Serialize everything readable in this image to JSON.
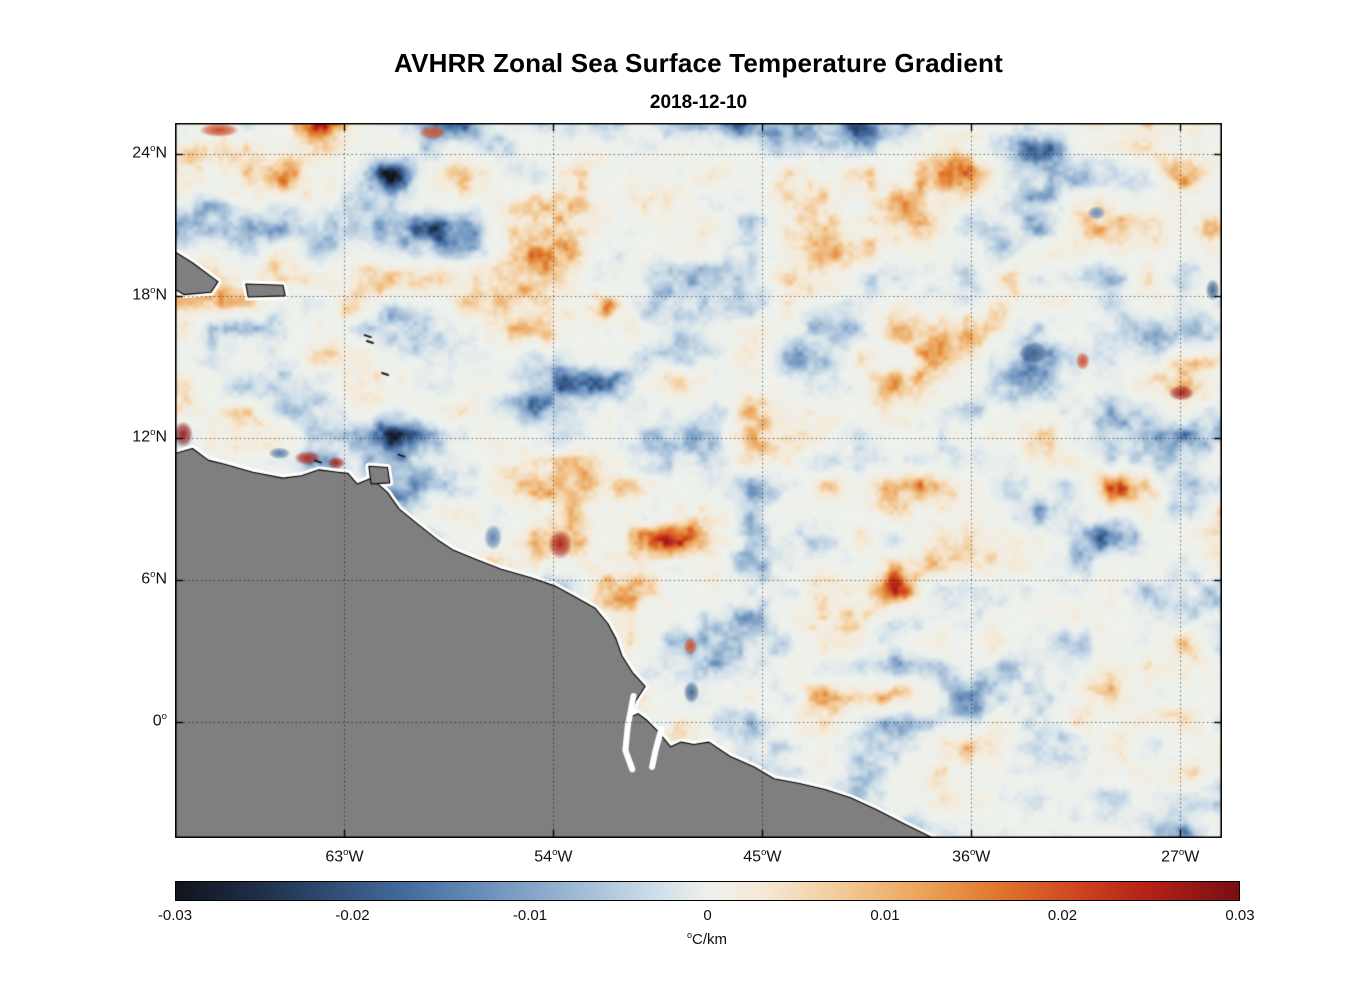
{
  "figure": {
    "title": "AVHRR Zonal Sea Surface Temperature Gradient",
    "subtitle": "2018-12-10"
  },
  "chart_data": {
    "type": "heatmap",
    "title": "AVHRR Zonal Sea Surface Temperature Gradient",
    "date": "2018-12-10",
    "variable": "Zonal sea surface temperature gradient",
    "units": "°C/km",
    "lon_range": [
      -70.3,
      -25.2
    ],
    "lat_range": [
      -4.9,
      25.3
    ],
    "grid": true,
    "grid_style": "dotted",
    "x_ticks": [
      {
        "lon": -63,
        "num": "63",
        "sup": "o",
        "hemi": "W"
      },
      {
        "lon": -54,
        "num": "54",
        "sup": "o",
        "hemi": "W"
      },
      {
        "lon": -45,
        "num": "45",
        "sup": "o",
        "hemi": "W"
      },
      {
        "lon": -36,
        "num": "36",
        "sup": "o",
        "hemi": "W"
      },
      {
        "lon": -27,
        "num": "27",
        "sup": "o",
        "hemi": "W"
      }
    ],
    "y_ticks": [
      {
        "lat": 24,
        "num": "24",
        "sup": "o",
        "hemi": "N"
      },
      {
        "lat": 18,
        "num": "18",
        "sup": "o",
        "hemi": "N"
      },
      {
        "lat": 12,
        "num": "12",
        "sup": "o",
        "hemi": "N"
      },
      {
        "lat": 6,
        "num": "6",
        "sup": "o",
        "hemi": "N"
      },
      {
        "lat": 0,
        "num": "0",
        "sup": "o",
        "hemi": ""
      }
    ],
    "colorbar": {
      "orientation": "horizontal",
      "min": -0.03,
      "max": 0.03,
      "tick_values": [
        -0.03,
        -0.02,
        -0.01,
        0,
        0.01,
        0.02,
        0.03
      ],
      "tick_labels": [
        "-0.03",
        "-0.02",
        "-0.01",
        "0",
        "0.01",
        "0.02",
        "0.03"
      ],
      "unit_sup": "o",
      "unit": "C/km",
      "stops": [
        [
          0.0,
          "#10151e"
        ],
        [
          0.07,
          "#1d2b44"
        ],
        [
          0.14,
          "#2e4a70"
        ],
        [
          0.21,
          "#41689b"
        ],
        [
          0.29,
          "#6a8fbb"
        ],
        [
          0.37,
          "#9ab7d3"
        ],
        [
          0.45,
          "#cddde9"
        ],
        [
          0.5,
          "#eef1ec"
        ],
        [
          0.55,
          "#f5ead8"
        ],
        [
          0.62,
          "#f3cd9d"
        ],
        [
          0.7,
          "#eba55c"
        ],
        [
          0.77,
          "#e0792f"
        ],
        [
          0.84,
          "#d04a22"
        ],
        [
          0.91,
          "#b52318"
        ],
        [
          1.0,
          "#7a0e12"
        ]
      ]
    },
    "land_color": "#7f7f7f",
    "coast_halo_color": "#ffffff",
    "coast_line_color": "#000000",
    "noise": {
      "seed": 12345,
      "amplitude": 0.03
    },
    "land": {
      "mainland": [
        [
          -70.45,
          11.3
        ],
        [
          -69.55,
          11.55
        ],
        [
          -68.85,
          11.05
        ],
        [
          -68.2,
          10.9
        ],
        [
          -66.95,
          10.55
        ],
        [
          -65.65,
          10.3
        ],
        [
          -64.85,
          10.4
        ],
        [
          -64.1,
          10.65
        ],
        [
          -63.3,
          10.55
        ],
        [
          -62.85,
          10.5
        ],
        [
          -62.45,
          10.05
        ],
        [
          -61.85,
          10.3
        ],
        [
          -61.15,
          9.7
        ],
        [
          -60.65,
          9.0
        ],
        [
          -59.9,
          8.4
        ],
        [
          -59.0,
          7.7
        ],
        [
          -58.3,
          7.25
        ],
        [
          -57.3,
          6.85
        ],
        [
          -56.25,
          6.45
        ],
        [
          -55.0,
          6.1
        ],
        [
          -53.95,
          5.75
        ],
        [
          -53.1,
          5.3
        ],
        [
          -52.2,
          4.8
        ],
        [
          -51.65,
          4.15
        ],
        [
          -51.3,
          3.5
        ],
        [
          -51.05,
          2.8
        ],
        [
          -50.6,
          2.1
        ],
        [
          -50.05,
          1.5
        ],
        [
          -50.45,
          0.9
        ],
        [
          -50.7,
          0.2
        ],
        [
          -50.35,
          0.35
        ],
        [
          -49.95,
          0.05
        ],
        [
          -49.5,
          -0.4
        ],
        [
          -48.95,
          -1.05
        ],
        [
          -48.5,
          -0.85
        ],
        [
          -47.95,
          -0.95
        ],
        [
          -47.3,
          -0.85
        ],
        [
          -46.4,
          -1.45
        ],
        [
          -45.35,
          -1.9
        ],
        [
          -44.5,
          -2.4
        ],
        [
          -43.4,
          -2.6
        ],
        [
          -42.3,
          -2.85
        ],
        [
          -41.2,
          -3.2
        ],
        [
          -40.1,
          -3.7
        ],
        [
          -38.9,
          -4.3
        ],
        [
          -37.55,
          -4.95
        ],
        [
          -36.9,
          -5.7
        ],
        [
          -36.5,
          -7.0
        ],
        [
          -71.0,
          -7.0
        ]
      ],
      "hispaniola": [
        [
          -70.45,
          19.95
        ],
        [
          -69.55,
          19.4
        ],
        [
          -68.45,
          18.6
        ],
        [
          -68.75,
          18.15
        ],
        [
          -69.9,
          18.05
        ],
        [
          -70.45,
          18.35
        ]
      ],
      "puerto_rico": [
        [
          -67.25,
          18.5
        ],
        [
          -65.65,
          18.45
        ],
        [
          -65.55,
          18.0
        ],
        [
          -67.15,
          17.95
        ]
      ],
      "trinidad": [
        [
          -61.95,
          10.8
        ],
        [
          -61.15,
          10.75
        ],
        [
          -61.05,
          10.1
        ],
        [
          -61.85,
          10.05
        ]
      ],
      "channels": [
        [
          [
            -50.55,
            1.1
          ],
          [
            -50.8,
            -0.2
          ],
          [
            -50.9,
            -1.2
          ],
          [
            -50.6,
            -2.0
          ]
        ],
        [
          [
            -49.35,
            -0.3
          ],
          [
            -49.6,
            -1.2
          ],
          [
            -49.75,
            -1.9
          ]
        ]
      ],
      "specks": [
        [
          -62.0,
          16.3
        ],
        [
          -61.9,
          16.05
        ],
        [
          -61.25,
          14.7
        ],
        [
          -64.15,
          11.0
        ],
        [
          -60.55,
          11.25
        ]
      ]
    },
    "features": [
      [
        -68.4,
        25.0,
        0.022,
        20,
        7
      ],
      [
        -59.2,
        24.9,
        0.02,
        14,
        7
      ],
      [
        -69.95,
        12.15,
        0.028,
        10,
        13
      ],
      [
        -64.6,
        11.15,
        0.024,
        13,
        7
      ],
      [
        -63.35,
        10.95,
        0.026,
        9,
        6
      ],
      [
        -65.8,
        11.35,
        -0.016,
        11,
        6
      ],
      [
        -53.7,
        7.5,
        0.026,
        12,
        15
      ],
      [
        -56.6,
        7.8,
        -0.015,
        9,
        13
      ],
      [
        -48.05,
        1.25,
        -0.019,
        8,
        11
      ],
      [
        -48.1,
        3.2,
        0.02,
        7,
        9
      ],
      [
        -33.3,
        15.6,
        -0.019,
        15,
        11
      ],
      [
        -31.2,
        15.25,
        0.021,
        7,
        9
      ],
      [
        -26.95,
        13.9,
        0.027,
        13,
        8
      ],
      [
        -25.6,
        18.25,
        -0.019,
        7,
        11
      ],
      [
        -30.6,
        21.5,
        -0.014,
        9,
        7
      ]
    ]
  }
}
